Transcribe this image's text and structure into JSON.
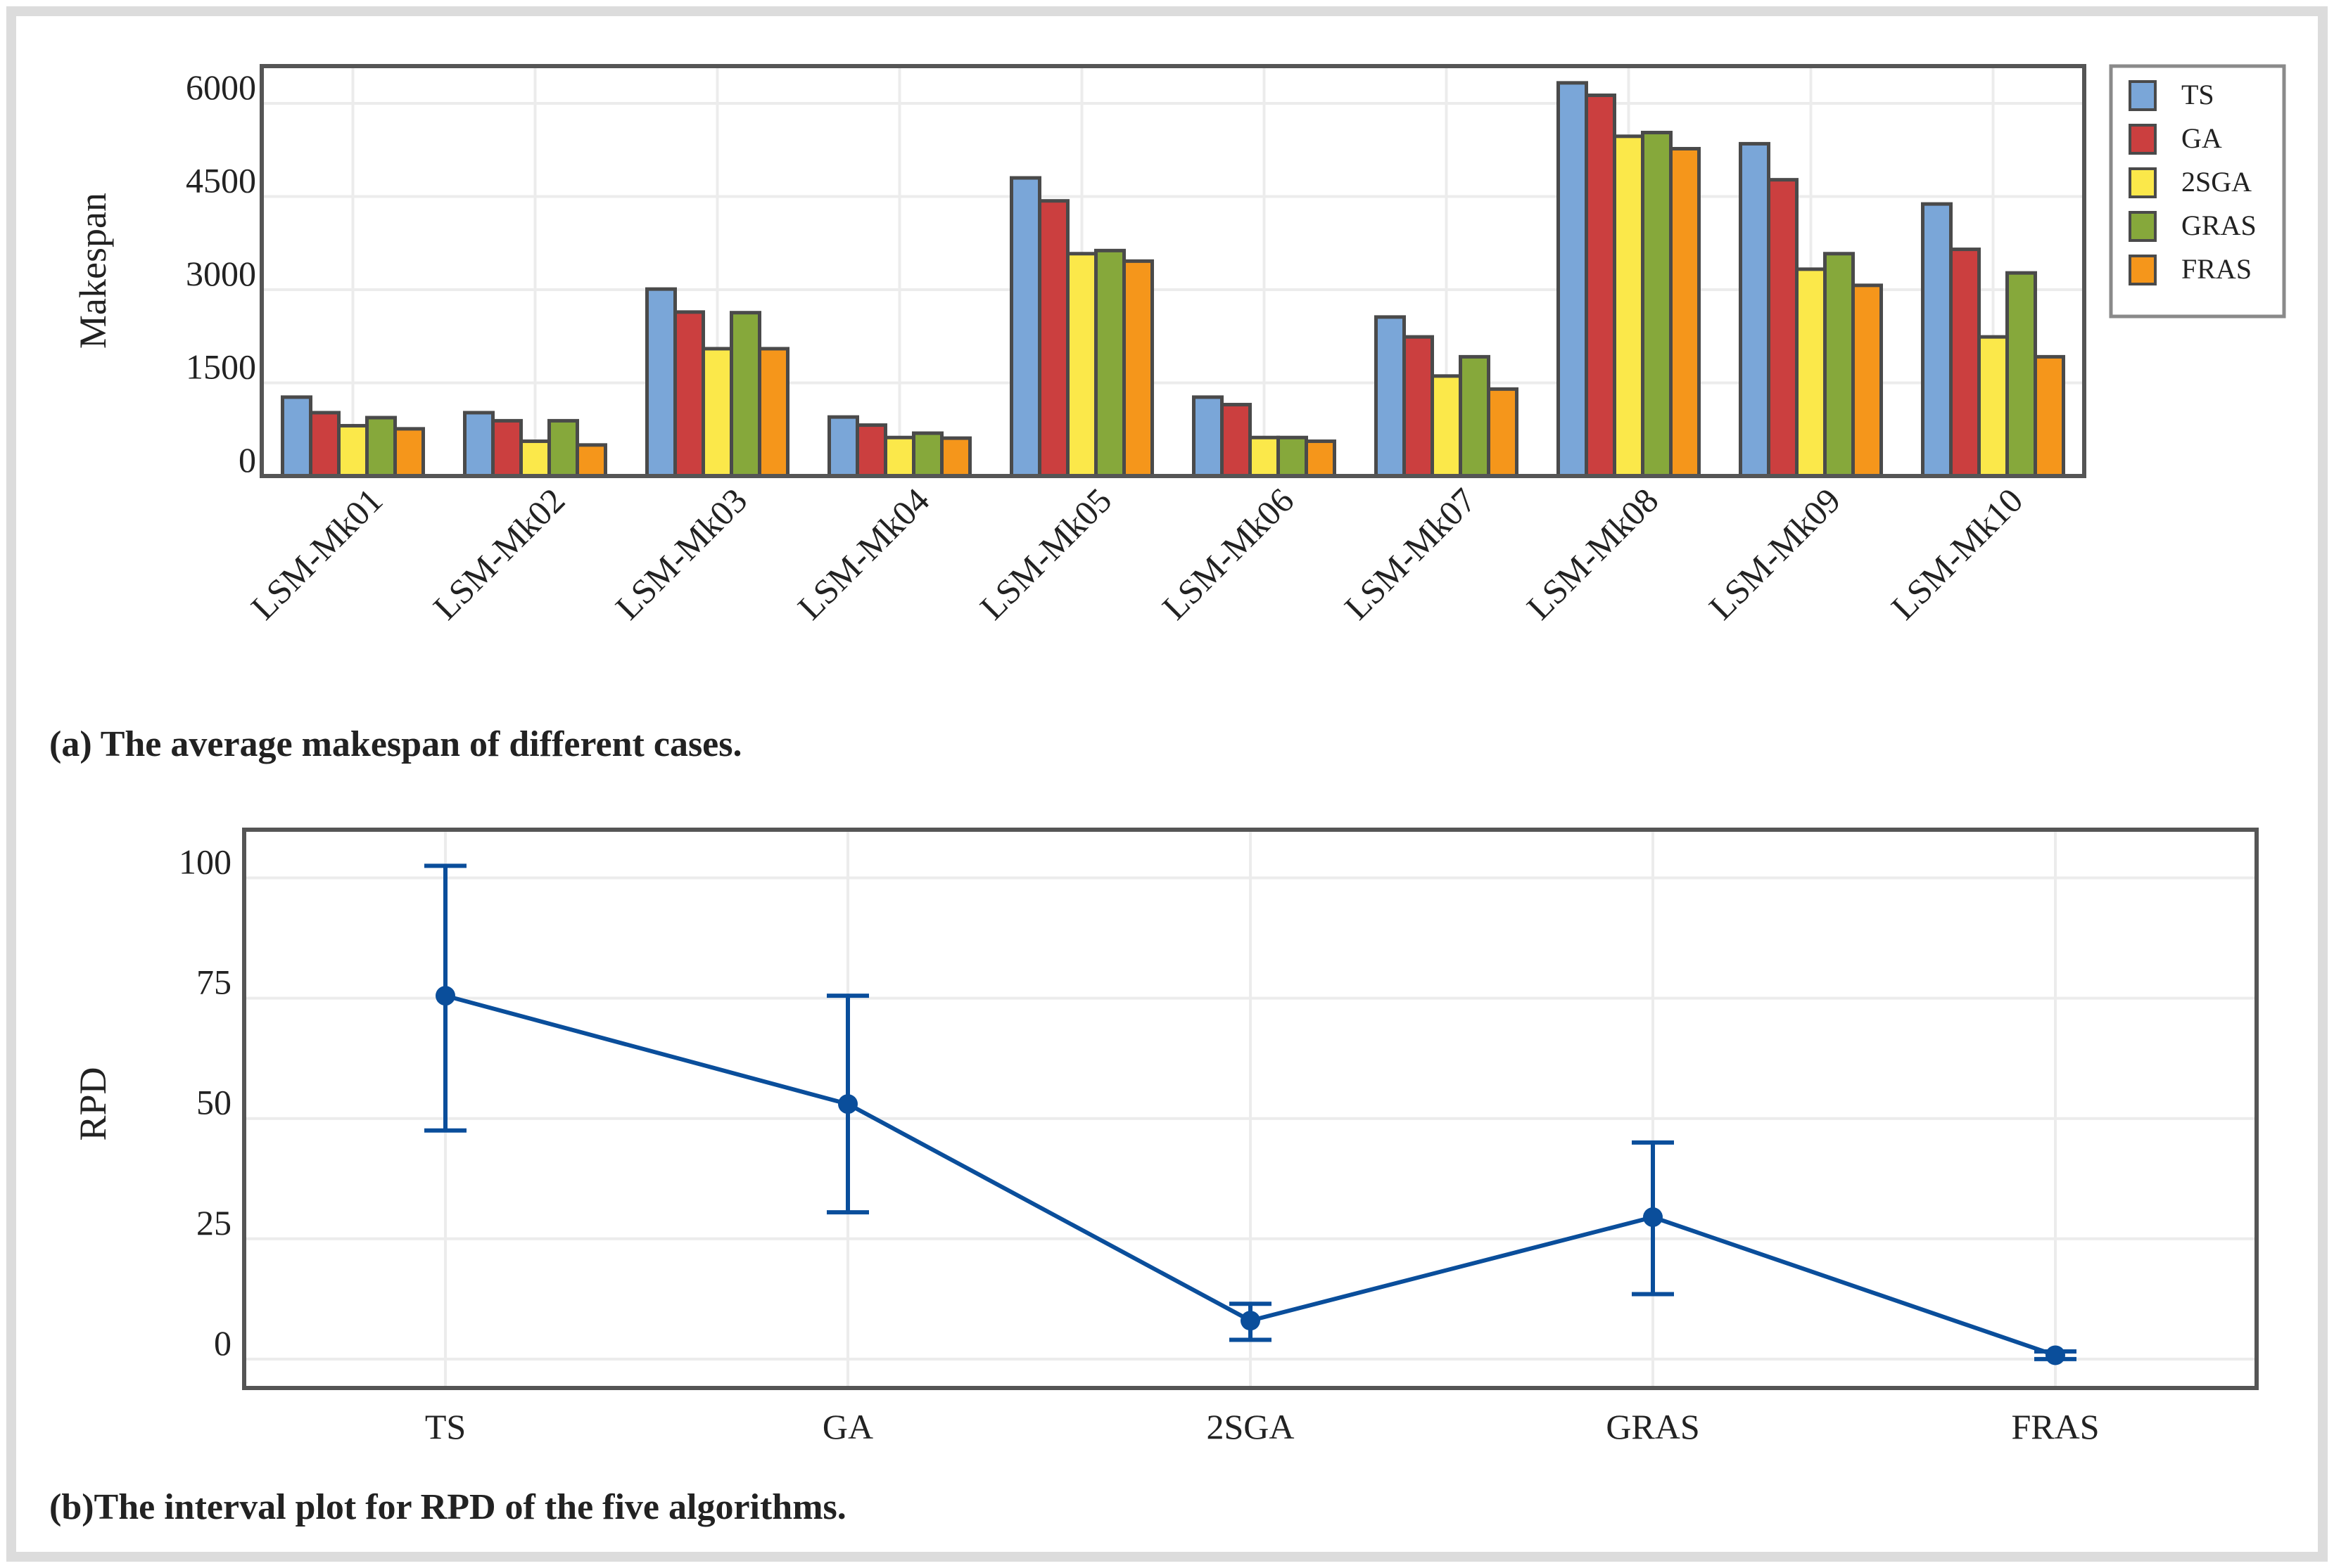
{
  "chart_data": [
    {
      "type": "bar",
      "title": "",
      "caption": "(a) The average makespan of different cases.",
      "xlabel": "",
      "ylabel": "Makespan",
      "ylim": [
        0,
        6600
      ],
      "yticks": [
        0,
        1500,
        3000,
        4500,
        6000
      ],
      "grid": true,
      "legend_position": "right",
      "categories": [
        "LSM-Mk01",
        "LSM-Mk02",
        "LSM-Mk03",
        "LSM-Mk04",
        "LSM-Mk05",
        "LSM-Mk06",
        "LSM-Mk07",
        "LSM-Mk08",
        "LSM-Mk09",
        "LSM-Mk10"
      ],
      "series": [
        {
          "name": "TS",
          "color": "#7aa6d8",
          "values": [
            1270,
            1020,
            3010,
            950,
            4800,
            1270,
            2560,
            6330,
            5350,
            4380
          ]
        },
        {
          "name": "GA",
          "color": "#cb3f3f",
          "values": [
            1020,
            890,
            2640,
            820,
            4430,
            1150,
            2240,
            6130,
            4770,
            3650
          ]
        },
        {
          "name": "2SGA",
          "color": "#fbe84a",
          "values": [
            810,
            560,
            2050,
            620,
            3580,
            620,
            1610,
            5470,
            3330,
            2240
          ]
        },
        {
          "name": "GRAS",
          "color": "#86a83b",
          "values": [
            940,
            890,
            2630,
            690,
            3630,
            620,
            1920,
            5530,
            3580,
            3270
          ]
        },
        {
          "name": "FRAS",
          "color": "#f5961b",
          "values": [
            760,
            500,
            2050,
            610,
            3460,
            560,
            1400,
            5270,
            3070,
            1920
          ]
        }
      ]
    },
    {
      "type": "line",
      "subtype": "interval",
      "title": "",
      "caption": "(b)The interval plot for RPD of the five algorithms.",
      "xlabel": "",
      "ylabel": "RPD",
      "ylim": [
        -6,
        110
      ],
      "yticks": [
        0,
        25,
        50,
        75,
        100
      ],
      "grid": true,
      "color": "#0a4e9b",
      "categories": [
        "TS",
        "GA",
        "2SGA",
        "GRAS",
        "FRAS"
      ],
      "series": [
        {
          "name": "RPD mean",
          "values": [
            75.5,
            53.0,
            8.0,
            29.5,
            0.8
          ]
        }
      ],
      "intervals": [
        {
          "lower": 47.5,
          "upper": 102.5
        },
        {
          "lower": 30.5,
          "upper": 75.5
        },
        {
          "lower": 4.0,
          "upper": 11.5
        },
        {
          "lower": 13.5,
          "upper": 45.0
        },
        {
          "lower": 0.0,
          "upper": 1.6
        }
      ]
    }
  ]
}
